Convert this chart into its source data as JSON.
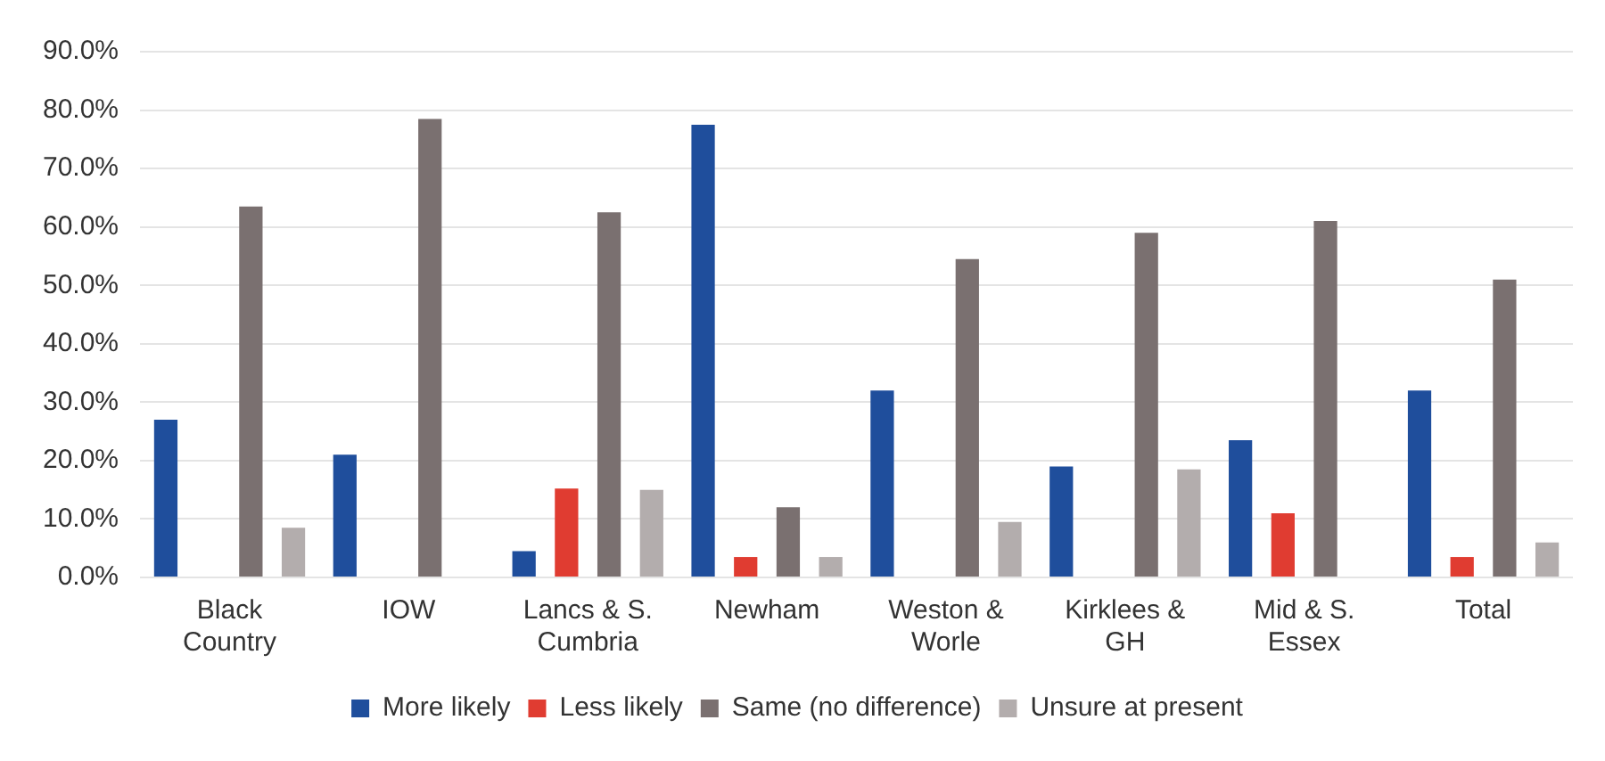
{
  "chart_data": {
    "type": "bar",
    "categories": [
      "Black Country",
      "IOW",
      "Lancs & S. Cumbria",
      "Newham",
      "Weston & Worle",
      "Kirklees & GH",
      "Mid & S. Essex",
      "Total"
    ],
    "series": [
      {
        "name": "More likely",
        "color": "#1f4e9c",
        "values": [
          27,
          21,
          4.5,
          77.5,
          32,
          19,
          23.5,
          32
        ]
      },
      {
        "name": "Less likely",
        "color": "#e03c31",
        "values": [
          0,
          0,
          15.2,
          3.5,
          0,
          0,
          11,
          3.5
        ]
      },
      {
        "name": "Same (no difference)",
        "color": "#7a7070",
        "values": [
          63.5,
          78.5,
          62.5,
          12,
          54.5,
          59,
          61,
          51
        ]
      },
      {
        "name": "Unsure at present",
        "color": "#b3adad",
        "values": [
          8.5,
          0,
          15,
          3.5,
          9.5,
          18.5,
          0,
          6
        ]
      }
    ],
    "ylim": [
      0,
      90
    ],
    "yticks": [
      {
        "value": 0,
        "label": "0.0%"
      },
      {
        "value": 10,
        "label": "10.0%"
      },
      {
        "value": 20,
        "label": "20.0%"
      },
      {
        "value": 30,
        "label": "30.0%"
      },
      {
        "value": 40,
        "label": "40.0%"
      },
      {
        "value": 50,
        "label": "50.0%"
      },
      {
        "value": 60,
        "label": "60.0%"
      },
      {
        "value": 70,
        "label": "70.0%"
      },
      {
        "value": 80,
        "label": "80.0%"
      },
      {
        "value": 90,
        "label": "90.0%"
      }
    ],
    "grid": "y",
    "legend": "bottom"
  }
}
